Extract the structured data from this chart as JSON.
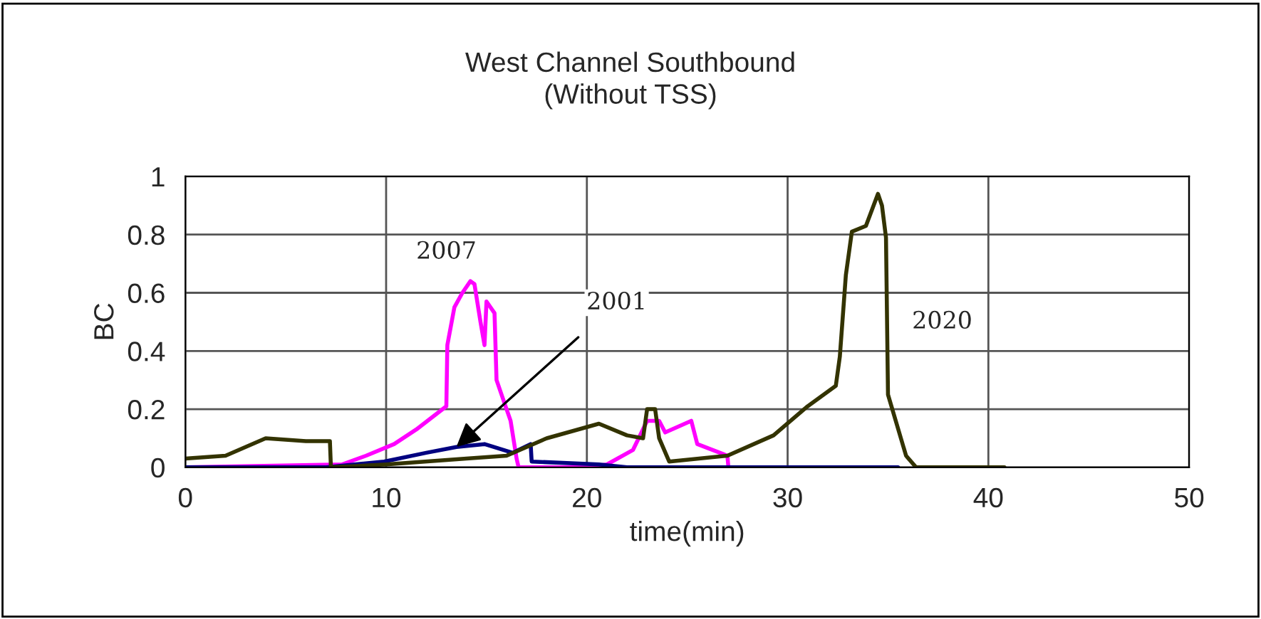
{
  "chart_data": {
    "type": "line",
    "title": "West Channel Southbound\n(Without TSS)",
    "xlabel": "time(min)",
    "ylabel": "BC",
    "xlim": [
      0,
      50
    ],
    "xticks": [
      0,
      10,
      20,
      30,
      40,
      50
    ],
    "ylim": [
      0,
      1
    ],
    "yticks": [
      0,
      0.2,
      0.4,
      0.6,
      0.8,
      1
    ],
    "grid": true,
    "legend": false,
    "series": [
      {
        "name": "2007",
        "color": "#ff00ff",
        "x": [
          0,
          7.8,
          9,
          10.4,
          11.5,
          13.0,
          13.05,
          13.4,
          13.8,
          14.2,
          14.4,
          14.7,
          14.9,
          15.0,
          15.4,
          15.5,
          16.0,
          16.2,
          16.5,
          16.6,
          20,
          21,
          22.3,
          23.0,
          23.6,
          23.9,
          25.2,
          25.5,
          27.0,
          27.05
        ],
        "values": [
          0,
          0.01,
          0.04,
          0.08,
          0.13,
          0.21,
          0.42,
          0.55,
          0.6,
          0.64,
          0.63,
          0.5,
          0.42,
          0.57,
          0.53,
          0.3,
          0.2,
          0.16,
          0.03,
          0,
          0,
          0.01,
          0.06,
          0.16,
          0.16,
          0.12,
          0.16,
          0.08,
          0.04,
          0
        ]
      },
      {
        "color": "#000080",
        "x": [
          0,
          7,
          9.9,
          12,
          13.5,
          14.9,
          16.3,
          17.2,
          17.25,
          20.6,
          22,
          35.5
        ],
        "values": [
          0,
          0,
          0.02,
          0.05,
          0.07,
          0.08,
          0.05,
          0.08,
          0.02,
          0.01,
          0,
          0
        ]
      },
      {
        "name": "2020",
        "color": "#333300",
        "x": [
          0,
          2,
          3,
          4.0,
          6,
          7.2,
          7.25,
          10,
          14,
          16,
          18,
          20.6,
          22,
          22.8,
          23.0,
          23.4,
          23.6,
          24.1,
          27,
          29.3,
          31,
          32.4,
          32.6,
          32.9,
          33.2,
          33.9,
          34.5,
          34.7,
          34.9,
          35.0,
          35.9,
          36.4,
          40.8
        ],
        "values": [
          0.03,
          0.04,
          0.07,
          0.1,
          0.09,
          0.09,
          0,
          0.01,
          0.03,
          0.04,
          0.1,
          0.15,
          0.11,
          0.1,
          0.2,
          0.2,
          0.1,
          0.02,
          0.04,
          0.11,
          0.21,
          0.28,
          0.38,
          0.66,
          0.81,
          0.83,
          0.94,
          0.9,
          0.79,
          0.25,
          0.04,
          0,
          0
        ]
      }
    ],
    "annotations": [
      {
        "text": "2001",
        "x": 13.5,
        "y": 0.07
      }
    ]
  }
}
